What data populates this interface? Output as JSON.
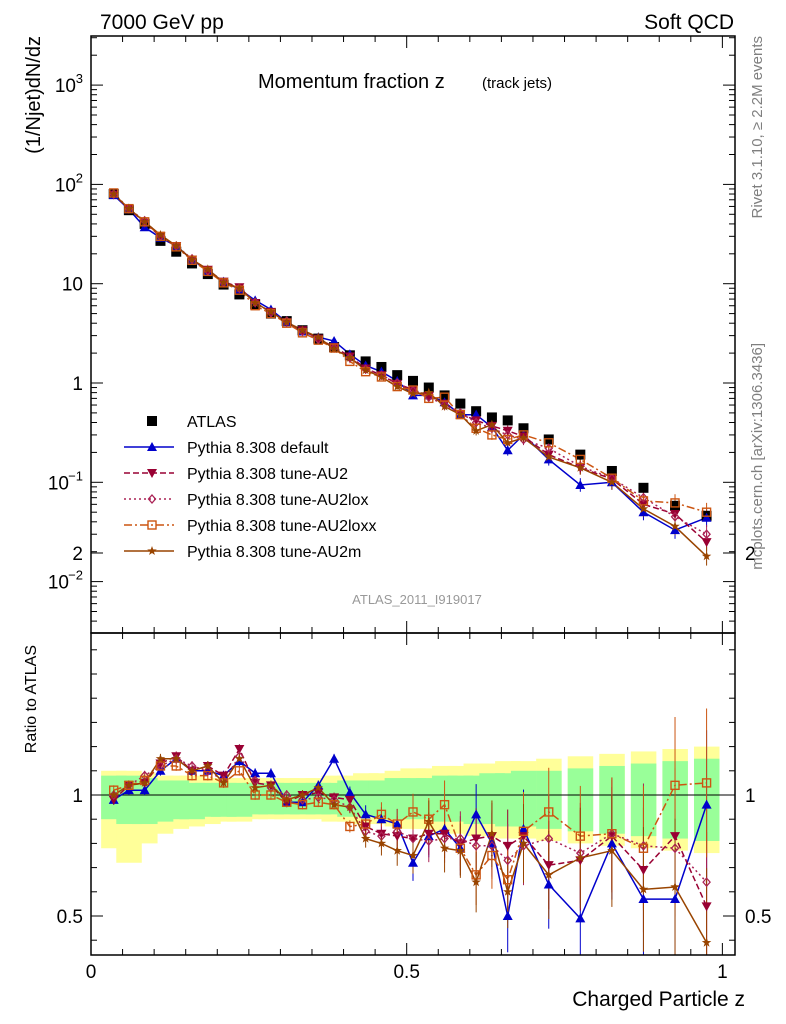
{
  "header": {
    "left": "7000 GeV pp",
    "right": "Soft QCD"
  },
  "side_labels": {
    "rivet": "Rivet 3.1.10, ≥ 2.2M events",
    "mcplots": "mcplots.cern.ch [arXiv:1306.3436]"
  },
  "chart_data": [
    {
      "type": "scatter",
      "panel": "main",
      "title_main": "Momentum fraction z",
      "title_sub": "(track jets)",
      "watermark": "ATLAS_2011_I919017",
      "ylabel": "(1/Njet)dN/dz",
      "xlabel": "",
      "yscale": "log",
      "ylim": [
        0.003,
        3000
      ],
      "xlim": [
        0,
        1.02
      ],
      "ytick_labels": [
        "10^-2",
        "10^-1",
        "1",
        "10",
        "10^2",
        "10^3"
      ],
      "x": [
        0.036,
        0.06,
        0.085,
        0.11,
        0.135,
        0.16,
        0.185,
        0.21,
        0.235,
        0.26,
        0.285,
        0.31,
        0.335,
        0.36,
        0.385,
        0.41,
        0.435,
        0.46,
        0.485,
        0.51,
        0.535,
        0.56,
        0.585,
        0.61,
        0.635,
        0.66,
        0.685,
        0.725,
        0.775,
        0.825,
        0.875,
        0.925,
        0.975
      ],
      "series": [
        {
          "name": "ATLAS",
          "color": "#000000",
          "marker": "square-filled",
          "line": "none",
          "values": [
            80,
            55,
            40,
            27,
            21,
            16,
            12.5,
            9.8,
            7.8,
            6.2,
            5.0,
            4.2,
            3.4,
            2.8,
            2.3,
            1.9,
            1.65,
            1.45,
            1.2,
            1.05,
            0.9,
            0.75,
            0.62,
            0.52,
            0.45,
            0.42,
            0.35,
            0.27,
            0.19,
            0.13,
            0.088,
            0.058,
            0.046
          ]
        },
        {
          "name": "Pythia 8.308 default",
          "color": "#0000cc",
          "marker": "triangle-up",
          "line": "solid",
          "values": [
            78,
            56,
            37,
            29,
            24,
            17.5,
            13.5,
            10.5,
            8.8,
            6.8,
            5.5,
            4.1,
            3.3,
            2.9,
            2.65,
            1.95,
            1.5,
            1.3,
            1.05,
            0.75,
            0.75,
            0.64,
            0.48,
            0.48,
            0.36,
            0.21,
            0.3,
            0.17,
            0.094,
            0.1,
            0.05,
            0.033,
            0.044
          ]
        },
        {
          "name": "Pythia 8.308 tune-AU2",
          "color": "#990033",
          "marker": "triangle-down",
          "line": "dashed",
          "values": [
            79,
            57,
            41,
            30,
            24,
            17.5,
            13.8,
            10.5,
            9.2,
            6.4,
            5.2,
            4.1,
            3.4,
            2.8,
            2.3,
            1.85,
            1.4,
            1.2,
            0.98,
            0.86,
            0.74,
            0.62,
            0.49,
            0.42,
            0.37,
            0.33,
            0.29,
            0.19,
            0.14,
            0.108,
            0.06,
            0.048,
            0.025
          ]
        },
        {
          "name": "Pythia 8.308 tune-AU2lox",
          "color": "#aa2255",
          "marker": "diamond-open",
          "line": "dotted",
          "values": [
            80,
            57,
            43,
            30,
            24,
            17.8,
            13.5,
            10.3,
            9.0,
            6.5,
            5.1,
            4.2,
            3.3,
            2.75,
            2.25,
            1.8,
            1.38,
            1.2,
            1.0,
            0.84,
            0.72,
            0.6,
            0.5,
            0.4,
            0.35,
            0.3,
            0.27,
            0.22,
            0.145,
            0.11,
            0.07,
            0.045,
            0.03
          ]
        },
        {
          "name": "Pythia 8.308 tune-AU2loxx",
          "color": "#cc5511",
          "marker": "square-open",
          "line": "dashdot",
          "values": [
            82,
            57,
            42,
            30,
            23.5,
            17.2,
            13.3,
            10.2,
            8.6,
            6.0,
            5.0,
            4.0,
            3.2,
            2.7,
            2.25,
            1.65,
            1.3,
            1.15,
            0.92,
            0.85,
            0.7,
            0.72,
            0.48,
            0.35,
            0.3,
            0.27,
            0.3,
            0.25,
            0.17,
            0.11,
            0.065,
            0.062,
            0.05
          ]
        },
        {
          "name": "Pythia 8.308 tune-AU2m",
          "color": "#994400",
          "marker": "star",
          "line": "solid",
          "values": [
            80,
            57,
            42,
            31,
            24,
            17.5,
            14,
            10.3,
            9.0,
            6.4,
            5.2,
            4.1,
            3.4,
            2.9,
            2.2,
            1.8,
            1.35,
            1.15,
            0.92,
            0.78,
            0.8,
            0.58,
            0.48,
            0.33,
            0.38,
            0.25,
            0.28,
            0.18,
            0.14,
            0.1,
            0.054,
            0.036,
            0.018
          ]
        }
      ]
    },
    {
      "type": "line",
      "panel": "ratio",
      "ylabel": "Ratio to ATLAS",
      "xlabel": "Charged Particle z",
      "ylim": [
        0.35,
        2.3
      ],
      "xlim": [
        0,
        1.02
      ],
      "ytick_labels": [
        "0.5",
        "1",
        "2"
      ],
      "xtick_labels": [
        "0",
        "0.5",
        "1"
      ],
      "x": [
        0.036,
        0.06,
        0.085,
        0.11,
        0.135,
        0.16,
        0.185,
        0.21,
        0.235,
        0.26,
        0.285,
        0.31,
        0.335,
        0.36,
        0.385,
        0.41,
        0.435,
        0.46,
        0.485,
        0.51,
        0.535,
        0.56,
        0.585,
        0.61,
        0.635,
        0.66,
        0.685,
        0.725,
        0.775,
        0.825,
        0.875,
        0.925,
        0.975
      ],
      "band_green": [
        [
          0.9,
          1.08
        ],
        [
          0.88,
          1.08
        ],
        [
          0.88,
          1.07
        ],
        [
          0.89,
          1.06
        ],
        [
          0.9,
          1.06
        ],
        [
          0.9,
          1.05
        ],
        [
          0.91,
          1.05
        ],
        [
          0.91,
          1.05
        ],
        [
          0.91,
          1.05
        ],
        [
          0.92,
          1.05
        ],
        [
          0.92,
          1.05
        ],
        [
          0.92,
          1.05
        ],
        [
          0.92,
          1.05
        ],
        [
          0.92,
          1.05
        ],
        [
          0.92,
          1.05
        ],
        [
          0.91,
          1.06
        ],
        [
          0.91,
          1.06
        ],
        [
          0.91,
          1.06
        ],
        [
          0.9,
          1.07
        ],
        [
          0.9,
          1.07
        ],
        [
          0.9,
          1.07
        ],
        [
          0.89,
          1.08
        ],
        [
          0.89,
          1.08
        ],
        [
          0.88,
          1.08
        ],
        [
          0.88,
          1.09
        ],
        [
          0.87,
          1.09
        ],
        [
          0.87,
          1.1
        ],
        [
          0.86,
          1.1
        ],
        [
          0.85,
          1.11
        ],
        [
          0.84,
          1.12
        ],
        [
          0.83,
          1.13
        ],
        [
          0.82,
          1.14
        ],
        [
          0.81,
          1.15
        ]
      ],
      "band_yellow": [
        [
          0.78,
          1.1
        ],
        [
          0.72,
          1.1
        ],
        [
          0.8,
          1.09
        ],
        [
          0.84,
          1.08
        ],
        [
          0.86,
          1.08
        ],
        [
          0.87,
          1.08
        ],
        [
          0.88,
          1.07
        ],
        [
          0.89,
          1.07
        ],
        [
          0.89,
          1.07
        ],
        [
          0.9,
          1.07
        ],
        [
          0.9,
          1.07
        ],
        [
          0.9,
          1.07
        ],
        [
          0.9,
          1.07
        ],
        [
          0.9,
          1.07
        ],
        [
          0.89,
          1.08
        ],
        [
          0.89,
          1.08
        ],
        [
          0.88,
          1.09
        ],
        [
          0.88,
          1.09
        ],
        [
          0.87,
          1.1
        ],
        [
          0.86,
          1.11
        ],
        [
          0.86,
          1.11
        ],
        [
          0.85,
          1.12
        ],
        [
          0.84,
          1.12
        ],
        [
          0.83,
          1.13
        ],
        [
          0.83,
          1.13
        ],
        [
          0.82,
          1.14
        ],
        [
          0.82,
          1.14
        ],
        [
          0.81,
          1.15
        ],
        [
          0.8,
          1.16
        ],
        [
          0.79,
          1.17
        ],
        [
          0.78,
          1.18
        ],
        [
          0.77,
          1.19
        ],
        [
          0.76,
          1.2
        ]
      ],
      "series": [
        {
          "name": "Pythia 8.308 default",
          "color": "#0000cc",
          "marker": "triangle-up",
          "line": "solid",
          "values": [
            0.98,
            1.02,
            1.02,
            1.1,
            1.15,
            1.1,
            1.1,
            1.08,
            1.14,
            1.09,
            1.09,
            0.97,
            0.97,
            1.04,
            1.15,
            1.01,
            0.92,
            0.9,
            0.88,
            0.72,
            0.83,
            0.86,
            0.78,
            0.92,
            0.8,
            0.5,
            0.86,
            0.63,
            0.49,
            0.8,
            0.57,
            0.57,
            0.96
          ]
        },
        {
          "name": "Pythia 8.308 tune-AU2",
          "color": "#990033",
          "marker": "triangle-down",
          "line": "dashed",
          "values": [
            0.98,
            1.04,
            1.05,
            1.13,
            1.16,
            1.1,
            1.12,
            1.08,
            1.19,
            1.05,
            1.04,
            0.97,
            1.0,
            1.01,
            0.99,
            0.98,
            0.87,
            0.84,
            0.83,
            0.82,
            0.84,
            0.84,
            0.8,
            0.82,
            0.83,
            0.79,
            0.83,
            0.71,
            0.73,
            0.83,
            0.69,
            0.83,
            0.54
          ]
        },
        {
          "name": "Pythia 8.308 tune-AU2lox",
          "color": "#aa2255",
          "marker": "diamond-open",
          "line": "dotted",
          "values": [
            1.0,
            1.04,
            1.08,
            1.12,
            1.15,
            1.12,
            1.1,
            1.06,
            1.16,
            1.06,
            1.03,
            1.0,
            0.98,
            0.99,
            0.98,
            0.95,
            0.85,
            0.83,
            0.85,
            0.82,
            0.81,
            0.82,
            0.82,
            0.79,
            0.79,
            0.73,
            0.79,
            0.82,
            0.76,
            0.84,
            0.79,
            0.78,
            0.64
          ]
        },
        {
          "name": "Pythia 8.308 tune-AU2loxx",
          "color": "#cc5511",
          "marker": "square-open",
          "line": "dashdot",
          "values": [
            1.02,
            1.04,
            1.06,
            1.12,
            1.12,
            1.08,
            1.08,
            1.05,
            1.1,
            1.0,
            1.0,
            0.97,
            0.96,
            0.97,
            0.96,
            0.87,
            0.88,
            0.92,
            0.88,
            0.93,
            0.9,
            0.96,
            0.78,
            0.67,
            0.75,
            0.65,
            0.85,
            0.93,
            0.83,
            0.84,
            0.78,
            1.04,
            1.05
          ]
        },
        {
          "name": "Pythia 8.308 tune-AU2m",
          "color": "#994400",
          "marker": "star",
          "line": "solid",
          "values": [
            1.0,
            1.04,
            1.05,
            1.15,
            1.15,
            1.1,
            1.12,
            1.05,
            1.15,
            1.03,
            1.04,
            0.98,
            1.0,
            1.03,
            0.96,
            0.95,
            0.82,
            0.8,
            0.77,
            0.75,
            0.89,
            0.78,
            0.77,
            0.64,
            0.84,
            0.6,
            0.8,
            0.67,
            0.74,
            0.77,
            0.61,
            0.62,
            0.39
          ]
        }
      ]
    }
  ]
}
